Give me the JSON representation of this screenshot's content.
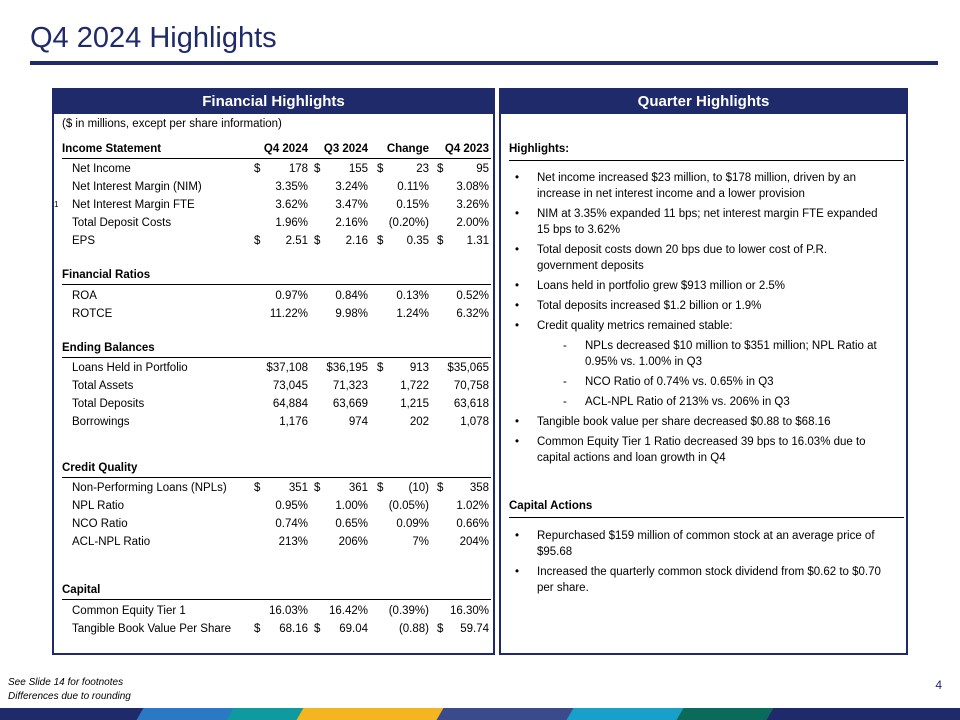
{
  "page": {
    "title": "Q4 2024 Highlights",
    "number": "4"
  },
  "financial": {
    "header": "Financial Highlights",
    "subnote": "($ in millions, except per share information)",
    "columns": [
      "Q4 2024",
      "Q3 2024",
      "Change",
      "Q4 2023"
    ],
    "income_title": "Income Statement",
    "income": [
      {
        "label": "Net Income",
        "vals": [
          "178",
          "155",
          "23",
          "95"
        ],
        "dollar": [
          true,
          true,
          true,
          true
        ]
      },
      {
        "label": "Net Interest Margin (NIM)",
        "vals": [
          "3.35%",
          "3.24%",
          "0.11%",
          "3.08%"
        ],
        "dollar": [
          false,
          false,
          false,
          false
        ]
      },
      {
        "label": "Net Interest Margin FTE",
        "sup": "1",
        "vals": [
          "3.62%",
          "3.47%",
          "0.15%",
          "3.26%"
        ],
        "dollar": [
          false,
          false,
          false,
          false
        ]
      },
      {
        "label": "Total Deposit Costs",
        "vals": [
          "1.96%",
          "2.16%",
          "(0.20%)",
          "2.00%"
        ],
        "dollar": [
          false,
          false,
          false,
          false
        ]
      },
      {
        "label": "EPS",
        "vals": [
          "2.51",
          "2.16",
          "0.35",
          "1.31"
        ],
        "dollar": [
          true,
          true,
          true,
          true
        ]
      }
    ],
    "ratios_title": "Financial Ratios",
    "ratios": [
      {
        "label": "ROA",
        "vals": [
          "0.97%",
          "0.84%",
          "0.13%",
          "0.52%"
        ],
        "dollar": [
          false,
          false,
          false,
          false
        ]
      },
      {
        "label": "ROTCE",
        "vals": [
          "11.22%",
          "9.98%",
          "1.24%",
          "6.32%"
        ],
        "dollar": [
          false,
          false,
          false,
          false
        ]
      }
    ],
    "balances_title": "Ending Balances",
    "balances": [
      {
        "label": "Loans Held in Portfolio",
        "vals": [
          "$37,108",
          "$36,195",
          "913",
          "$35,065"
        ],
        "dollar": [
          false,
          false,
          true,
          false
        ]
      },
      {
        "label": "Total Assets",
        "vals": [
          "73,045",
          "71,323",
          "1,722",
          "70,758"
        ],
        "dollar": [
          false,
          false,
          false,
          false
        ]
      },
      {
        "label": "Total Deposits",
        "vals": [
          "64,884",
          "63,669",
          "1,215",
          "63,618"
        ],
        "dollar": [
          false,
          false,
          false,
          false
        ]
      },
      {
        "label": "Borrowings",
        "vals": [
          "1,176",
          "974",
          "202",
          "1,078"
        ],
        "dollar": [
          false,
          false,
          false,
          false
        ]
      }
    ],
    "credit_title": "Credit Quality",
    "credit": [
      {
        "label": "Non-Performing Loans (NPLs)",
        "vals": [
          "351",
          "361",
          "(10)",
          "358"
        ],
        "dollar": [
          true,
          true,
          true,
          true
        ]
      },
      {
        "label": "NPL Ratio",
        "vals": [
          "0.95%",
          "1.00%",
          "(0.05%)",
          "1.02%"
        ],
        "dollar": [
          false,
          false,
          false,
          false
        ]
      },
      {
        "label": "NCO Ratio",
        "vals": [
          "0.74%",
          "0.65%",
          "0.09%",
          "0.66%"
        ],
        "dollar": [
          false,
          false,
          false,
          false
        ]
      },
      {
        "label": "ACL-NPL Ratio",
        "vals": [
          "213%",
          "206%",
          "7%",
          "204%"
        ],
        "dollar": [
          false,
          false,
          false,
          false
        ]
      }
    ],
    "capital_title": "Capital",
    "capital": [
      {
        "label": "Common Equity Tier 1",
        "vals": [
          "16.03%",
          "16.42%",
          "(0.39%)",
          "16.30%"
        ],
        "dollar": [
          false,
          false,
          false,
          false
        ]
      },
      {
        "label": "Tangible Book Value Per Share",
        "vals": [
          "68.16",
          "69.04",
          "(0.88)",
          "59.74"
        ],
        "dollar": [
          true,
          true,
          false,
          true
        ]
      }
    ]
  },
  "quarter": {
    "header": "Quarter Highlights",
    "highlights_title": "Highlights:",
    "bullets": [
      "Net income increased $23 million, to $178 million, driven by an increase in net interest income and a lower provision",
      "NIM at 3.35% expanded 11 bps; net interest margin FTE expanded 15 bps to 3.62%",
      "Total deposit costs down 20 bps due to lower cost of P.R. government deposits",
      "Loans held in portfolio grew $913 million or 2.5%",
      "Total deposits increased $1.2 billion or 1.9%",
      "Credit quality metrics remained stable:"
    ],
    "sub_bullets": [
      "NPLs decreased $10 million to $351 million; NPL Ratio at 0.95% vs. 1.00% in Q3",
      "NCO Ratio of 0.74% vs. 0.65% in Q3",
      "ACL-NPL Ratio of 213% vs. 206% in Q3"
    ],
    "bullets2": [
      "Tangible book value per share decreased $0.88 to $68.16",
      "Common Equity Tier 1 Ratio decreased 39 bps to 16.03% due to capital actions and loan growth in Q4"
    ],
    "capital_title": "Capital Actions",
    "capital_bullets": [
      "Repurchased $159 million of common stock at an average price of $95.68",
      "Increased the quarterly common stock dividend from $0.62 to $0.70 per share."
    ],
    "bullet_symbol": "•",
    "dash_symbol": "-"
  },
  "footnotes": [
    "See Slide 14 for footnotes",
    "Differences due to rounding"
  ],
  "colors": {
    "navy": "#1f2a6b",
    "stripe": [
      "#1f2a6b",
      "#2b78c5",
      "#0f9aa0",
      "#f3b621",
      "#3b4a8a",
      "#18a0c8",
      "#0b6b5a",
      "#1f2a6b"
    ]
  }
}
